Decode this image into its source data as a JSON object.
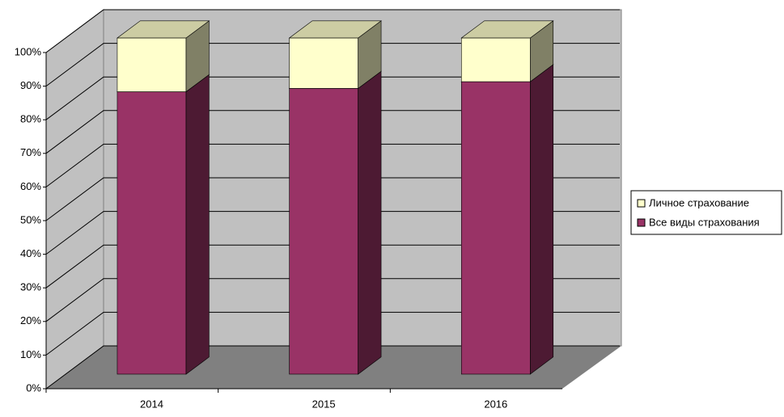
{
  "chart_data": {
    "type": "bar",
    "stacked": true,
    "categories": [
      "2014",
      "2015",
      "2016"
    ],
    "series": [
      {
        "name": "Все виды страхования",
        "color": "#993366",
        "values": [
          84,
          85,
          87
        ]
      },
      {
        "name": "Личное страхование",
        "color": "#ffffcc",
        "values": [
          16,
          15,
          13
        ]
      }
    ],
    "ylim": [
      0,
      100
    ],
    "yticks": [
      {
        "value": 0,
        "label": "0%"
      },
      {
        "value": 10,
        "label": "10%"
      },
      {
        "value": 20,
        "label": "20%"
      },
      {
        "value": 30,
        "label": "30%"
      },
      {
        "value": 40,
        "label": "40%"
      },
      {
        "value": 50,
        "label": "50%"
      },
      {
        "value": 60,
        "label": "60%"
      },
      {
        "value": 70,
        "label": "70%"
      },
      {
        "value": 80,
        "label": "80%"
      },
      {
        "value": 90,
        "label": "90%"
      },
      {
        "value": 100,
        "label": "100%"
      }
    ],
    "grid": true,
    "legend": "right"
  }
}
